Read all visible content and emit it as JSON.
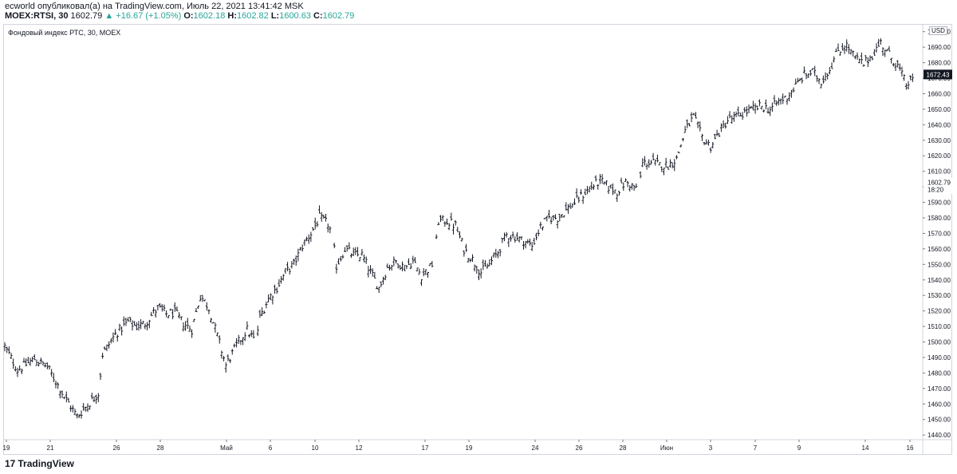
{
  "header": {
    "published_line": "ecworld опубликовал(а) на TradingView.com, Июль 22, 2021 13:41:42 MSK",
    "symbol": "MOEX:RTSI, 30",
    "last": "1602.79",
    "change": "▲ +16.67 (+1.05%)",
    "o_label": "O:",
    "o_value": "1602.18",
    "h_label": "H:",
    "h_value": "1602.82",
    "l_label": "L:",
    "l_value": "1600.63",
    "c_label": "C:",
    "c_value": "1602.79"
  },
  "legend": {
    "title": "Фондовый индекс РТС, 30, MOEX"
  },
  "price_scale": {
    "currency": "USD"
  },
  "footer": {
    "logo_text": "TradingView",
    "logo_mark": "17"
  },
  "colors": {
    "bars": "#131722",
    "up": "#26a69a",
    "grid_border": "#d1d4dc",
    "label_bg": "#131722"
  },
  "chart_data": {
    "type": "ohlc-bar",
    "y_ticks": [
      1440,
      1450,
      1460,
      1470,
      1480,
      1490,
      1500,
      1510,
      1520,
      1530,
      1540,
      1550,
      1560,
      1570,
      1580,
      1590,
      1600,
      1610,
      1620,
      1630,
      1640,
      1650,
      1660,
      1670,
      1680,
      1690,
      1700
    ],
    "y_tick_labels": [
      "1440.00",
      "1450.00",
      "1460.00",
      "1470.00",
      "1480.00",
      "1490.00",
      "1500.00",
      "1510.00",
      "1520.00",
      "1530.00",
      "1540.00",
      "1550.00",
      "1560.00",
      "1570.00",
      "1580.00",
      "1590.00",
      "1600.00",
      "1610.00",
      "1620.00",
      "1630.00",
      "1640.00",
      "1650.00",
      "1660.00",
      "1670.00",
      "1680.00",
      "1690.00",
      "1700.00"
    ],
    "ylim": [
      1437,
      1705
    ],
    "x_tick_labels": [
      "19",
      "21",
      "26",
      "28",
      "Май",
      "6",
      "10",
      "12",
      "17",
      "19",
      "24",
      "26",
      "28",
      "Июн",
      "3",
      "7",
      "9",
      "14",
      "16"
    ],
    "last_price_label": "1672.43",
    "last_price": 1672.43,
    "crosshair_price_label": "1602.79",
    "crosshair_price": 1602.79,
    "crosshair_time_label": "18:20",
    "path": [
      [
        0,
        1497
      ],
      [
        3,
        1482
      ],
      [
        7,
        1489
      ],
      [
        10,
        1484
      ],
      [
        14,
        1465
      ],
      [
        17,
        1452
      ],
      [
        19,
        1458
      ],
      [
        22,
        1467
      ],
      [
        23,
        1492
      ],
      [
        26,
        1505
      ],
      [
        29,
        1513
      ],
      [
        31,
        1510
      ],
      [
        33,
        1512
      ],
      [
        36,
        1522
      ],
      [
        38,
        1518
      ],
      [
        40,
        1519
      ],
      [
        42,
        1512
      ],
      [
        44,
        1508
      ],
      [
        46,
        1530
      ],
      [
        48,
        1522
      ],
      [
        50,
        1504
      ],
      [
        52,
        1485
      ],
      [
        53,
        1490
      ],
      [
        55,
        1500
      ],
      [
        57,
        1508
      ],
      [
        59,
        1500
      ],
      [
        60,
        1516
      ],
      [
        62,
        1528
      ],
      [
        64,
        1535
      ],
      [
        66,
        1545
      ],
      [
        68,
        1550
      ],
      [
        70,
        1562
      ],
      [
        72,
        1570
      ],
      [
        74,
        1580
      ],
      [
        76,
        1576
      ],
      [
        77,
        1569
      ],
      [
        78,
        1549
      ],
      [
        80,
        1560
      ],
      [
        82,
        1556
      ],
      [
        84,
        1556
      ],
      [
        86,
        1545
      ],
      [
        88,
        1535
      ],
      [
        90,
        1548
      ],
      [
        92,
        1552
      ],
      [
        94,
        1548
      ],
      [
        96,
        1552
      ],
      [
        98,
        1543
      ],
      [
        100,
        1548
      ],
      [
        101,
        1552
      ],
      [
        102,
        1578
      ],
      [
        104,
        1578
      ],
      [
        106,
        1575
      ],
      [
        108,
        1560
      ],
      [
        110,
        1553
      ],
      [
        112,
        1545
      ],
      [
        114,
        1550
      ],
      [
        116,
        1558
      ],
      [
        118,
        1569
      ],
      [
        120,
        1568
      ],
      [
        122,
        1565
      ],
      [
        124,
        1562
      ],
      [
        126,
        1574
      ],
      [
        128,
        1580
      ],
      [
        130,
        1580
      ],
      [
        132,
        1585
      ],
      [
        134,
        1590
      ],
      [
        136,
        1595
      ],
      [
        138,
        1600
      ],
      [
        140,
        1604
      ],
      [
        142,
        1600
      ],
      [
        144,
        1597
      ],
      [
        146,
        1603
      ],
      [
        148,
        1600
      ],
      [
        149,
        1597
      ],
      [
        150,
        1615
      ],
      [
        152,
        1616
      ],
      [
        154,
        1614
      ],
      [
        156,
        1614
      ],
      [
        158,
        1618
      ],
      [
        160,
        1636
      ],
      [
        162,
        1645
      ],
      [
        164,
        1632
      ],
      [
        166,
        1626
      ],
      [
        168,
        1635
      ],
      [
        170,
        1643
      ],
      [
        172,
        1645
      ],
      [
        174,
        1648
      ],
      [
        176,
        1650
      ],
      [
        178,
        1652
      ],
      [
        180,
        1650
      ],
      [
        182,
        1655
      ],
      [
        184,
        1658
      ],
      [
        186,
        1665
      ],
      [
        188,
        1672
      ],
      [
        190,
        1674
      ],
      [
        192,
        1668
      ],
      [
        194,
        1676
      ],
      [
        196,
        1688
      ],
      [
        198,
        1691
      ],
      [
        200,
        1683
      ],
      [
        202,
        1679
      ],
      [
        204,
        1685
      ],
      [
        206,
        1693
      ],
      [
        208,
        1685
      ],
      [
        210,
        1678
      ],
      [
        212,
        1666
      ],
      [
        214,
        1670
      ]
    ]
  }
}
